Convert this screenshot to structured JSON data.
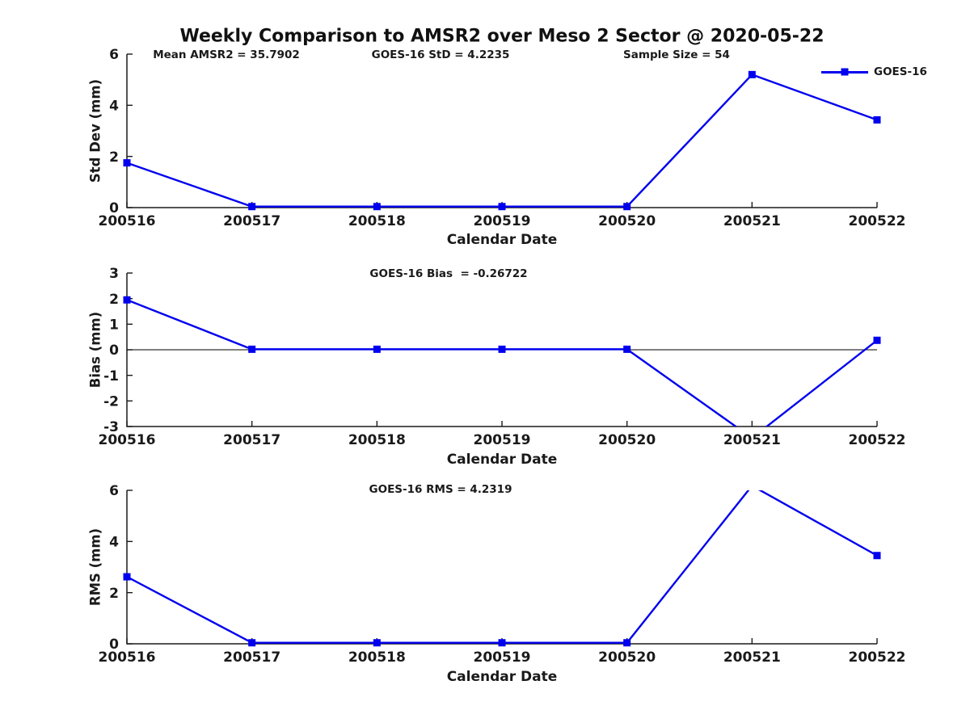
{
  "title": "Weekly Comparison to AMSR2 over Meso 2 Sector @ 2020-05-22",
  "legend": {
    "label": "GOES-16"
  },
  "colors": {
    "line": "#0000ee",
    "axis": "#1a1a1a",
    "zero_line": "#000000"
  },
  "chart_data": [
    {
      "type": "line",
      "name": "std-dev",
      "annotations": [
        "Mean AMSR2 = 35.7902",
        "GOES-16 StD = 4.2235",
        "Sample Size = 54"
      ],
      "categories": [
        "200516",
        "200517",
        "200518",
        "200519",
        "200520",
        "200521",
        "200522"
      ],
      "series": [
        {
          "name": "GOES-16",
          "values": [
            1.75,
            0.04,
            0.04,
            0.04,
            0.04,
            5.2,
            3.43
          ]
        }
      ],
      "xlabel": "Calendar Date",
      "ylabel": "Std Dev (mm)",
      "ylim": [
        0,
        6
      ],
      "yticks": [
        0,
        2,
        4,
        6
      ],
      "zero_line": false,
      "legend_position": "top-right",
      "grid": false
    },
    {
      "type": "line",
      "name": "bias",
      "annotations": [
        "GOES-16 Bias  = -0.26722"
      ],
      "categories": [
        "200516",
        "200517",
        "200518",
        "200519",
        "200520",
        "200521",
        "200522"
      ],
      "series": [
        {
          "name": "GOES-16",
          "values": [
            1.95,
            0.02,
            0.02,
            0.02,
            0.02,
            -3.45,
            0.37
          ]
        }
      ],
      "xlabel": "Calendar Date",
      "ylabel": "Bias (mm)",
      "ylim": [
        -3,
        3
      ],
      "yticks": [
        3,
        2,
        1,
        0,
        -1,
        -2,
        -3
      ],
      "zero_line": true,
      "grid": false
    },
    {
      "type": "line",
      "name": "rms",
      "annotations": [
        "GOES-16 RMS = 4.2319"
      ],
      "categories": [
        "200516",
        "200517",
        "200518",
        "200519",
        "200520",
        "200521",
        "200522"
      ],
      "series": [
        {
          "name": "GOES-16",
          "values": [
            2.62,
            0.04,
            0.04,
            0.04,
            0.04,
            6.18,
            3.45
          ]
        }
      ],
      "xlabel": "Calendar Date",
      "ylabel": "RMS (mm)",
      "ylim": [
        0,
        6
      ],
      "yticks": [
        0,
        2,
        4,
        6
      ],
      "zero_line": false,
      "grid": false
    }
  ]
}
